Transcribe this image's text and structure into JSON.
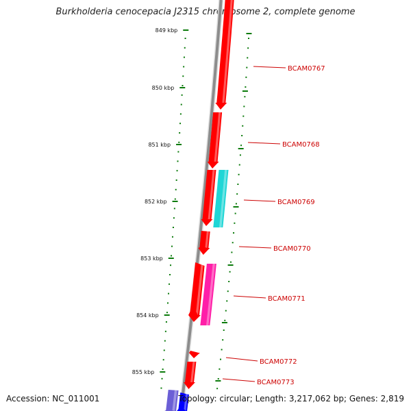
{
  "title": "Burkholderia cenocepacia J2315 chromosome 2, complete genome",
  "footer": {
    "accession": "Accession: NC_011001",
    "summary": "Topology: circular; Length: 3,217,062 bp; Genes: 2,819"
  },
  "scale_labels": [
    "849 kbp",
    "850 kbp",
    "851 kbp",
    "852 kbp",
    "853 kbp",
    "854 kbp",
    "855 kbp"
  ],
  "genes": [
    {
      "label": "BCAM0767",
      "color": "#ff0000"
    },
    {
      "label": "BCAM0768",
      "color": "#ff0000"
    },
    {
      "label": "BCAM0769",
      "color": "#ff0000"
    },
    {
      "label": "BCAM0770",
      "color": "#ff0000"
    },
    {
      "label": "BCAM0771",
      "color": "#ff0000"
    },
    {
      "label": "BCAM0772",
      "color": "#ff0000"
    },
    {
      "label": "BCAM0773",
      "color": "#ff0000"
    }
  ],
  "colors": {
    "backbone": "#8c8c8c",
    "cds_red": "#ff0000",
    "cds_cyan": "#1fd6d6",
    "cds_magenta": "#ff1fa8",
    "cds_blue": "#0000ff",
    "cds_slate": "#6b5fd6",
    "ruler": "#0a7a0a",
    "label": "#cc0000"
  }
}
